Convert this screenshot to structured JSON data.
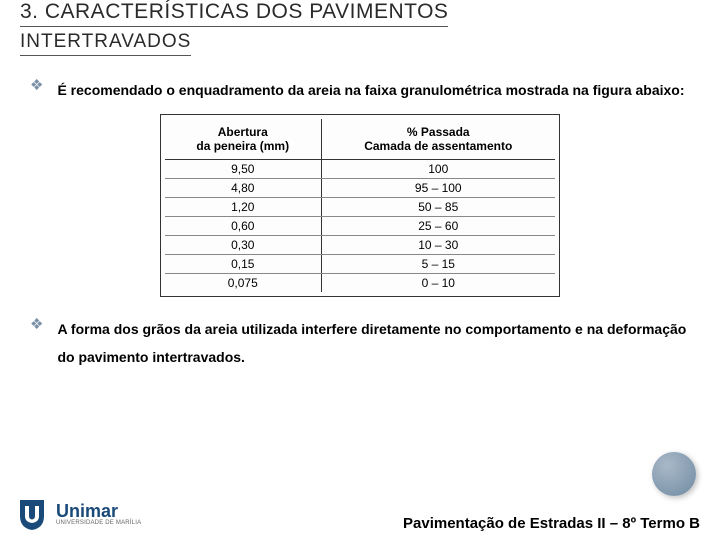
{
  "header": {
    "line1": "3. CARACTERÍSTICAS DOS PAVIMENTOS",
    "line2": "INTERTRAVADOS"
  },
  "bullets": {
    "b1": "É recomendado o enquadramento da areia na faixa granulométrica mostrada na figura abaixo:",
    "b2": "A forma dos grãos da areia utilizada interfere diretamente no comportamento e na deformação do pavimento intertravados."
  },
  "table": {
    "h1a": "Abertura",
    "h1b": "da peneira (mm)",
    "h2a": "% Passada",
    "h2b": "Camada de assentamento",
    "rows": [
      {
        "c1": "9,50",
        "c2": "100"
      },
      {
        "c1": "4,80",
        "c2": "95 – 100"
      },
      {
        "c1": "1,20",
        "c2": "50 – 85"
      },
      {
        "c1": "0,60",
        "c2": "25 – 60"
      },
      {
        "c1": "0,30",
        "c2": "10 – 30"
      },
      {
        "c1": "0,15",
        "c2": "5 – 15"
      },
      {
        "c1": "0,075",
        "c2": "0 – 10"
      }
    ]
  },
  "footer": {
    "logo_main": "Unimar",
    "logo_sub": "UNIVERSIDADE DE MARÍLIA",
    "text": "Pavimentação de Estradas II – 8º Termo B"
  },
  "colors": {
    "bullet": "#7a90a8",
    "logo_blue": "#1a4a7a"
  }
}
